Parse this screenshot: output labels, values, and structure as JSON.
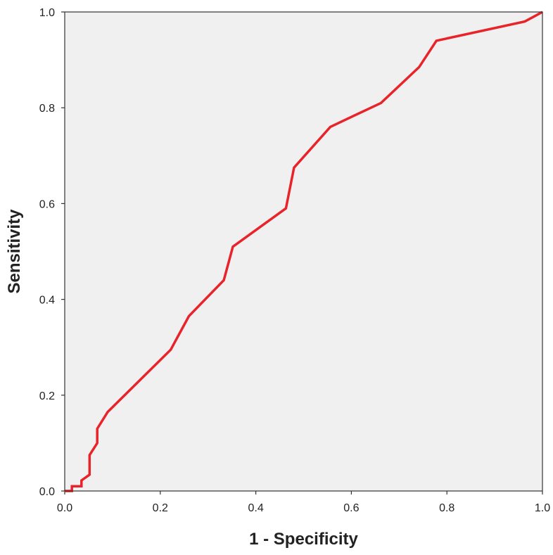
{
  "colors": {
    "plot_background": "#f0f0f0",
    "frame": "#333333",
    "curve": "#e8232a",
    "text": "#222222"
  },
  "chart_data": {
    "type": "line",
    "title": "",
    "xlabel": "1 - Specificity",
    "ylabel": "Sensitivity",
    "xlim": [
      0,
      1
    ],
    "ylim": [
      0,
      1
    ],
    "grid": false,
    "x_ticks": [
      "0.0",
      "0.2",
      "0.4",
      "0.6",
      "0.8",
      "1.0"
    ],
    "y_ticks": [
      "0.0",
      "0.2",
      "0.4",
      "0.6",
      "0.8",
      "1.0"
    ],
    "series": [
      {
        "x": [
          0,
          0.015,
          0.015,
          0.035,
          0.035,
          0.052,
          0.052,
          0.068,
          0.068,
          0.09,
          0.222,
          0.26,
          0.333,
          0.352,
          0.463,
          0.48,
          0.556,
          0.662,
          0.742,
          0.778,
          0.963,
          1.0
        ],
        "y": [
          0,
          0,
          0.01,
          0.01,
          0.022,
          0.034,
          0.075,
          0.1,
          0.13,
          0.165,
          0.295,
          0.365,
          0.44,
          0.51,
          0.59,
          0.675,
          0.76,
          0.81,
          0.885,
          0.94,
          0.98,
          1.0
        ]
      }
    ]
  }
}
